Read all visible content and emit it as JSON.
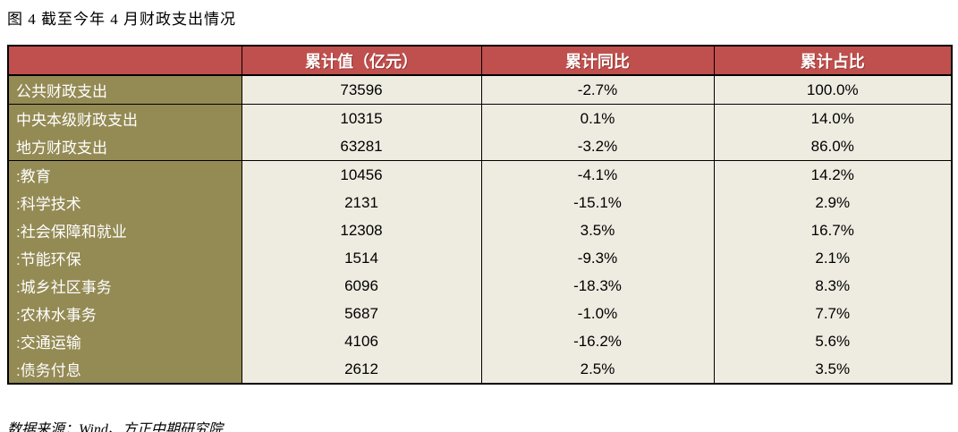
{
  "title": "图 4  截至今年 4 月财政支出情况",
  "source": "数据来源：Wind、方正中期研究院",
  "colors": {
    "header_bg": "#C0504D",
    "header_text": "#FFFFFF",
    "label_bg": "#948A54",
    "label_text": "#FFFFFF",
    "cell_bg": "#EEECE1",
    "cell_text": "#000000",
    "border": "#000000"
  },
  "table": {
    "columns": [
      "累计值（亿元）",
      "累计同比",
      "累计占比"
    ],
    "rows": [
      {
        "label": "公共财政支出",
        "value": "73596",
        "yoy": "-2.7%",
        "share": "100.0%",
        "group_start": true
      },
      {
        "label": "中央本级财政支出",
        "value": "10315",
        "yoy": "0.1%",
        "share": "14.0%",
        "group_start": true
      },
      {
        "label": "地方财政支出",
        "value": "63281",
        "yoy": "-3.2%",
        "share": "86.0%",
        "group_start": false
      },
      {
        "label": ":教育",
        "value": "10456",
        "yoy": "-4.1%",
        "share": "14.2%",
        "group_start": true
      },
      {
        "label": ":科学技术",
        "value": "2131",
        "yoy": "-15.1%",
        "share": "2.9%",
        "group_start": false
      },
      {
        "label": ":社会保障和就业",
        "value": "12308",
        "yoy": "3.5%",
        "share": "16.7%",
        "group_start": false
      },
      {
        "label": ":节能环保",
        "value": "1514",
        "yoy": "-9.3%",
        "share": "2.1%",
        "group_start": false
      },
      {
        "label": ":城乡社区事务",
        "value": "6096",
        "yoy": "-18.3%",
        "share": "8.3%",
        "group_start": false
      },
      {
        "label": ":农林水事务",
        "value": "5687",
        "yoy": "-1.0%",
        "share": "7.7%",
        "group_start": false
      },
      {
        "label": ":交通运输",
        "value": "4106",
        "yoy": "-16.2%",
        "share": "5.6%",
        "group_start": false
      },
      {
        "label": ":债务付息",
        "value": "2612",
        "yoy": "2.5%",
        "share": "3.5%",
        "group_start": false
      }
    ]
  }
}
